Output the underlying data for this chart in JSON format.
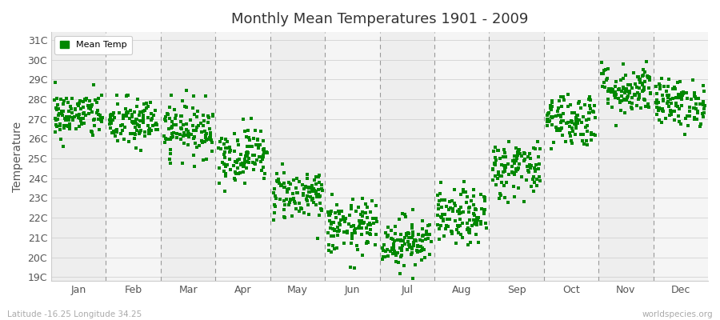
{
  "title": "Monthly Mean Temperatures 1901 - 2009",
  "ylabel": "Temperature",
  "xlabel_months": [
    "Jan",
    "Feb",
    "Mar",
    "Apr",
    "May",
    "Jun",
    "Jul",
    "Aug",
    "Sep",
    "Oct",
    "Nov",
    "Dec"
  ],
  "yticks": [
    19,
    20,
    21,
    22,
    23,
    24,
    25,
    26,
    27,
    28,
    29,
    30,
    31
  ],
  "ytick_labels": [
    "19C",
    "20C",
    "21C",
    "22C",
    "23C",
    "24C",
    "25C",
    "26C",
    "27C",
    "28C",
    "29C",
    "30C",
    "31C"
  ],
  "ylim": [
    18.8,
    31.4
  ],
  "dot_color": "#008800",
  "dot_size": 5,
  "fig_background": "#ffffff",
  "plot_background": "#f5f5f5",
  "band_color_even": "#eeeeee",
  "band_color_odd": "#f5f5f5",
  "legend_label": "Mean Temp",
  "footer_left": "Latitude -16.25 Longitude 34.25",
  "footer_right": "worldspecies.org",
  "n_years": 109,
  "month_means": [
    27.2,
    26.8,
    26.5,
    25.2,
    23.2,
    21.5,
    20.8,
    22.0,
    24.5,
    27.0,
    28.5,
    27.8
  ],
  "month_stds": [
    0.6,
    0.65,
    0.7,
    0.7,
    0.65,
    0.7,
    0.65,
    0.7,
    0.75,
    0.7,
    0.65,
    0.6
  ],
  "seed": 42,
  "dashed_line_color": "#999999",
  "spine_color": "#cccccc",
  "tick_label_color": "#555555",
  "footer_color": "#aaaaaa"
}
